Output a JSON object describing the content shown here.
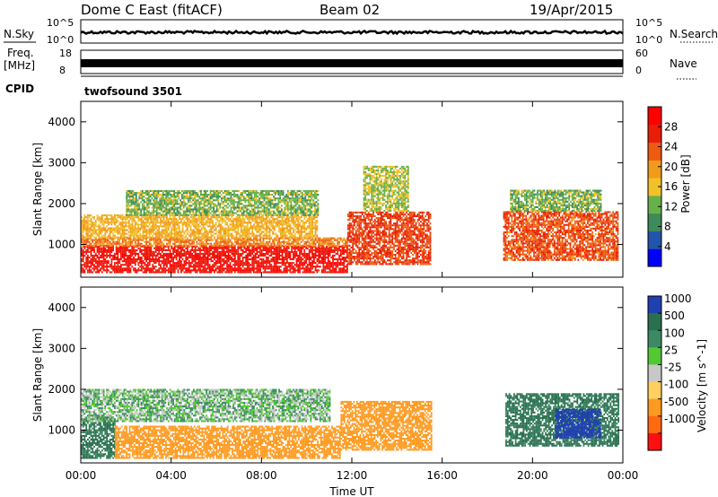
{
  "header": {
    "station": "Dome C East (fitACF)",
    "beam": "Beam 02",
    "date": "19/Apr/2015"
  },
  "ancillary": {
    "nsky_label": "N.Sky",
    "nsearch_label": "N.Search",
    "freq_label_1": "Freq.",
    "freq_label_2": "[MHz]",
    "nave_label": "Nave",
    "cpid_label": "CPID",
    "cpid_value": "twofsound 3501",
    "noise_left_ticks": [
      "10^5",
      "10^0"
    ],
    "noise_right_ticks": [
      "10^5",
      "10^0"
    ],
    "freq_left_ticks": [
      "18",
      "8"
    ],
    "nave_right_ticks": [
      "60",
      "0"
    ]
  },
  "colors": {
    "power_scale": [
      "#0000ff",
      "#2255aa",
      "#3d8a5a",
      "#68b04a",
      "#f2c12a",
      "#f29a1a",
      "#ee5a10",
      "#e81e0a",
      "#ff0000"
    ],
    "velocity_scale": [
      "#ff1010",
      "#ff6a10",
      "#ff9a20",
      "#ffd060",
      "#c8c8c8",
      "#c8c8c8",
      "#52c832",
      "#3c8a64",
      "#2a7050",
      "#2040b0"
    ]
  },
  "chart_data": [
    {
      "type": "heatmap",
      "title": "",
      "quantity": "Power",
      "xlabel": "",
      "ylabel": "Slant Range [km]",
      "x_ticks": [
        "00:00",
        "04:00",
        "08:00",
        "12:00",
        "16:00",
        "20:00",
        "00:00"
      ],
      "y_ticks": [
        "1000",
        "2000",
        "3000",
        "4000"
      ],
      "xlim_hours": [
        0,
        24
      ],
      "ylim_km": [
        200,
        4500
      ],
      "colorbar_label": "Power [dB]",
      "colorbar_ticks": [
        "4",
        "8",
        "12",
        "16",
        "20",
        "24",
        "28"
      ],
      "colorbar_range": [
        0,
        32
      ],
      "regions": [
        {
          "t": [
            0.0,
            11.8
          ],
          "r": [
            300,
            950
          ],
          "level": 30
        },
        {
          "t": [
            0.0,
            11.8
          ],
          "r": [
            950,
            1150
          ],
          "level": 22
        },
        {
          "t": [
            0.0,
            10.5
          ],
          "r": [
            1150,
            1700
          ],
          "level": 18
        },
        {
          "t": [
            2.0,
            10.5
          ],
          "r": [
            1700,
            2300
          ],
          "level": 12
        },
        {
          "t": [
            11.8,
            15.5
          ],
          "r": [
            500,
            1800
          ],
          "level": 26
        },
        {
          "t": [
            12.5,
            14.5
          ],
          "r": [
            1800,
            2900
          ],
          "level": 14
        },
        {
          "t": [
            18.7,
            23.8
          ],
          "r": [
            600,
            1800
          ],
          "level": 25
        },
        {
          "t": [
            19.0,
            23.0
          ],
          "r": [
            1800,
            2300
          ],
          "level": 12
        }
      ]
    },
    {
      "type": "heatmap",
      "title": "",
      "quantity": "Velocity",
      "xlabel": "Time UT",
      "ylabel": "Slant Range [km]",
      "x_ticks": [
        "00:00",
        "04:00",
        "08:00",
        "12:00",
        "16:00",
        "20:00",
        "00:00"
      ],
      "y_ticks": [
        "1000",
        "2000",
        "3000",
        "4000"
      ],
      "xlim_hours": [
        0,
        24
      ],
      "ylim_km": [
        200,
        4500
      ],
      "colorbar_label": "Velocity [m s^-1]",
      "colorbar_ticks": [
        "1000",
        "500",
        "100",
        "25",
        "-25",
        "-100",
        "-500",
        "-1000"
      ],
      "regions": [
        {
          "t": [
            0.0,
            1.5
          ],
          "r": [
            300,
            1300
          ],
          "velocity": 150
        },
        {
          "t": [
            1.5,
            11.5
          ],
          "r": [
            300,
            1100
          ],
          "velocity": -200
        },
        {
          "t": [
            0.0,
            11.0
          ],
          "r": [
            1200,
            2000
          ],
          "velocity": 0
        },
        {
          "t": [
            11.5,
            15.5
          ],
          "r": [
            500,
            1700
          ],
          "velocity": -200
        },
        {
          "t": [
            18.8,
            23.8
          ],
          "r": [
            600,
            1900
          ],
          "velocity": 150
        },
        {
          "t": [
            21.0,
            23.0
          ],
          "r": [
            800,
            1500
          ],
          "velocity": 800
        }
      ]
    }
  ]
}
